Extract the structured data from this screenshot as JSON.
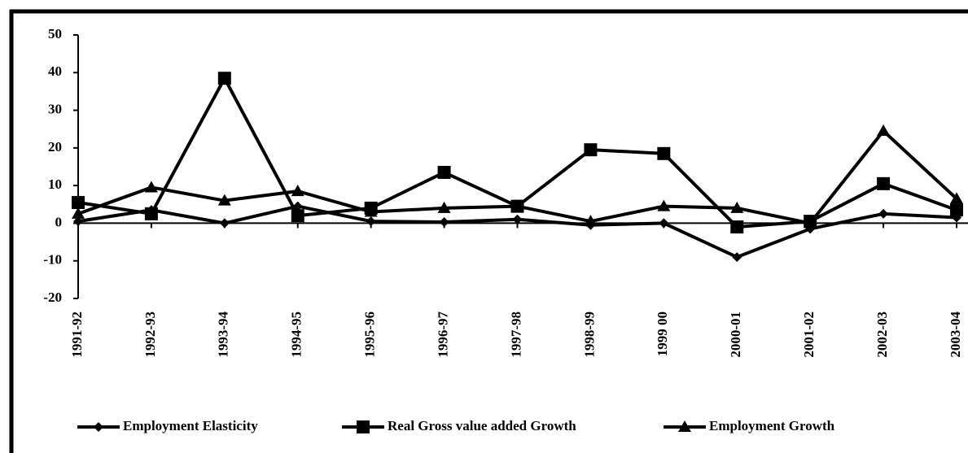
{
  "chart_data": {
    "type": "line",
    "categories": [
      "1991-92",
      "1992-93",
      "1993-94",
      "1994-95",
      "1995-96",
      "1996-97",
      "1997-98",
      "1998-99",
      "1999 00",
      "2000-01",
      "2001-02",
      "2002-03",
      "2003-04"
    ],
    "series": [
      {
        "name": "Employment Elasticity",
        "color": "#000000",
        "marker": "diamond",
        "values": [
          0.5,
          3.5,
          0,
          4.5,
          0.5,
          0.3,
          1,
          -0.5,
          0,
          -9,
          -1.5,
          2.5,
          1.5
        ]
      },
      {
        "name": "Real Gross value added Growth",
        "color": "#000000",
        "marker": "square",
        "values": [
          5.5,
          2.5,
          38.5,
          2,
          4,
          13.5,
          4.5,
          19.5,
          18.5,
          -1,
          0.5,
          10.5,
          3.5
        ]
      },
      {
        "name": "Employment Growth",
        "color": "#000000",
        "marker": "triangle",
        "values": [
          2.5,
          9.5,
          6,
          8.5,
          3,
          4,
          4.5,
          0.5,
          4.5,
          4,
          0,
          24.5,
          6.5
        ]
      }
    ],
    "ylim": [
      -20,
      50
    ],
    "yticks": [
      -20,
      -10,
      0,
      10,
      20,
      30,
      40,
      50
    ],
    "legend": "bottom"
  }
}
